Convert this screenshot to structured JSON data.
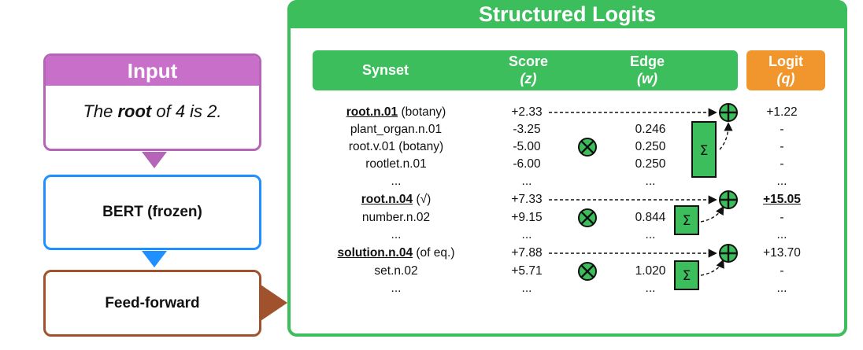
{
  "input": {
    "title": "Input",
    "sentence": {
      "pre": "The ",
      "bold": "root",
      "post": " of 4 is 2."
    }
  },
  "bert_label": "BERT (frozen)",
  "ff_label": "Feed-forward",
  "panel_title": "Structured Logits",
  "headers": {
    "synset": "Synset",
    "score": "Score",
    "score_sym": "(z)",
    "edge": "Edge",
    "edge_sym": "(w)",
    "logit": "Logit",
    "logit_sym": "(q)"
  },
  "rows": [
    {
      "synset": "root.n.01",
      "suffix": " (botany)",
      "head": true,
      "score": "+2.33",
      "edge": "",
      "logit": "+1.22"
    },
    {
      "synset": "plant_organ.n.01",
      "suffix": "",
      "head": false,
      "score": "-3.25",
      "edge": "0.246",
      "logit": "-"
    },
    {
      "synset": "root.v.01 (botany)",
      "suffix": "",
      "head": false,
      "score": "-5.00",
      "edge": "0.250",
      "logit": "-"
    },
    {
      "synset": "rootlet.n.01",
      "suffix": "",
      "head": false,
      "score": "-6.00",
      "edge": "0.250",
      "logit": "-"
    },
    {
      "synset": "...",
      "suffix": "",
      "head": false,
      "score": "...",
      "edge": "...",
      "logit": "..."
    },
    {
      "synset": "root.n.04",
      "suffix": " (√)",
      "head": true,
      "score": "+7.33",
      "edge": "",
      "logit": "+15.05",
      "logit_bold": true
    },
    {
      "synset": "number.n.02",
      "suffix": "",
      "head": false,
      "score": "+9.15",
      "edge": "0.844",
      "logit": "-"
    },
    {
      "synset": "...",
      "suffix": "",
      "head": false,
      "score": "...",
      "edge": "...",
      "logit": "..."
    },
    {
      "synset": "solution.n.04",
      "suffix": " (of eq.)",
      "head": true,
      "score": "+7.88",
      "edge": "",
      "logit": "+13.70"
    },
    {
      "synset": "set.n.02",
      "suffix": "",
      "head": false,
      "score": "+5.71",
      "edge": "1.020",
      "logit": "-"
    },
    {
      "synset": "...",
      "suffix": "",
      "head": false,
      "score": "...",
      "edge": "...",
      "logit": "..."
    }
  ],
  "symbols": {
    "sum": "Σ",
    "times": "⊗",
    "plus": "⊕"
  },
  "colors": {
    "green": "#3cbe5c",
    "orange": "#f0962d",
    "purple": "#c86fc9",
    "blue": "#1e90ff",
    "brown": "#a0522d"
  }
}
